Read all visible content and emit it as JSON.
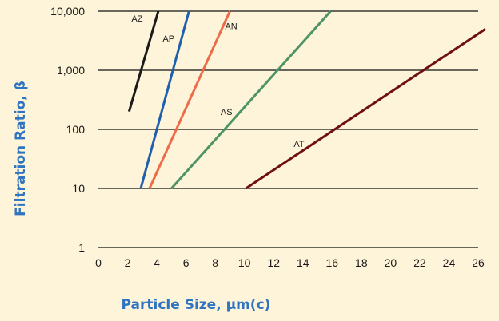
{
  "chart_data": {
    "type": "line",
    "x_axis": {
      "label": "Particle Size, µm(c)",
      "range": [
        0,
        26
      ],
      "ticks": [
        0,
        2,
        4,
        6,
        8,
        10,
        12,
        14,
        16,
        18,
        20,
        22,
        24,
        26
      ],
      "tick_labels": [
        "0",
        "2",
        "4",
        "6",
        "8",
        "10",
        "12",
        "14",
        "16",
        "18",
        "20",
        "22",
        "24",
        "26"
      ]
    },
    "y_axis": {
      "label": "Filtration Ratio, β",
      "scale": "log",
      "range": [
        1,
        10000
      ],
      "ticks": [
        1,
        10,
        100,
        1000,
        10000
      ],
      "tick_labels": [
        "1",
        "10",
        "100",
        "1,000",
        "10,000"
      ]
    },
    "grid": "horizontal",
    "axis_title_color": "#2f74c0",
    "series": [
      {
        "name": "AZ",
        "color": "#1a1a1a",
        "points": [
          [
            2.1,
            200
          ],
          [
            4.1,
            10000
          ]
        ]
      },
      {
        "name": "AP",
        "color": "#1f5fae",
        "points": [
          [
            2.9,
            10
          ],
          [
            6.2,
            10000
          ]
        ]
      },
      {
        "name": "AN",
        "color": "#ee6b4a",
        "points": [
          [
            3.5,
            10
          ],
          [
            9.0,
            10000
          ]
        ]
      },
      {
        "name": "AS",
        "color": "#4f9466",
        "points": [
          [
            5.0,
            10
          ],
          [
            15.9,
            10000
          ]
        ]
      },
      {
        "name": "AT",
        "color": "#6f0f12",
        "points": [
          [
            10.1,
            10
          ],
          [
            26.5,
            5000
          ]
        ]
      }
    ]
  }
}
